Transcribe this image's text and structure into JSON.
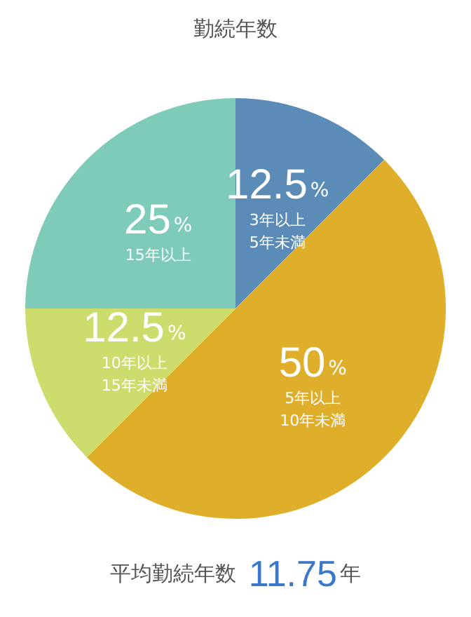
{
  "chart_data": {
    "type": "pie",
    "title": "勤続年数",
    "categories": [
      "3年以上\n5年未満",
      "5年以上\n10年未満",
      "10年以上\n15年未満",
      "15年以上"
    ],
    "values": [
      12.5,
      50,
      12.5,
      25
    ],
    "value_labels": [
      "12.5%",
      "50%",
      "12.5%",
      "25%"
    ],
    "colors": [
      "#5b8cb8",
      "#dfae2a",
      "#cddc6c",
      "#7dcbb8"
    ],
    "legend": false,
    "annotations": [
      "平均勤続年数 11.75年"
    ]
  }
}
